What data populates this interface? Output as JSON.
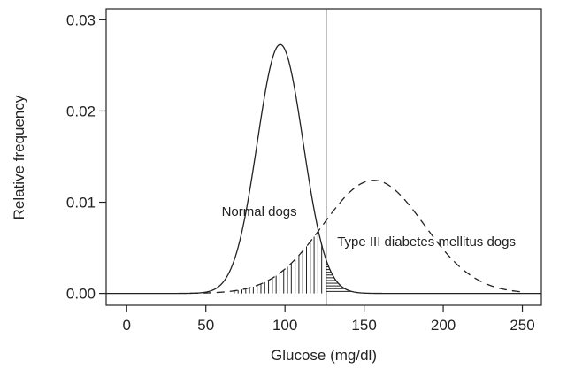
{
  "chart_data": {
    "type": "line",
    "title": "",
    "xlabel": "Glucose (mg/dl)",
    "ylabel": "Relative frequency",
    "xlim": [
      -13,
      262
    ],
    "ylim": [
      -0.0013,
      0.0312
    ],
    "x_ticks": [
      0,
      50,
      100,
      150,
      200,
      250
    ],
    "x_tick_labels": [
      "0",
      "50",
      "100",
      "150",
      "200",
      "250"
    ],
    "y_ticks": [
      0.0,
      0.01,
      0.02,
      0.03
    ],
    "y_tick_labels": [
      "0.00",
      "0.01",
      "0.02",
      "0.03"
    ],
    "grid": false,
    "series": [
      {
        "style": "solid",
        "distribution": "normal",
        "mean": 97,
        "sd": 14.5,
        "peak": 0.0273,
        "x": [
          -13,
          40,
          50,
          60,
          70,
          80,
          90,
          97,
          105,
          110,
          120,
          126,
          130,
          140,
          150,
          262
        ],
        "y": [
          0.0,
          0.0001,
          0.0005,
          0.0026,
          0.0083,
          0.0174,
          0.0242,
          0.0273,
          0.0234,
          0.0184,
          0.0097,
          0.006,
          0.0038,
          0.0011,
          0.0001,
          0.0
        ]
      },
      {
        "style": "dashed",
        "distribution": "normal",
        "mean": 156,
        "sd": 32,
        "peak": 0.0124,
        "x": [
          40,
          60,
          80,
          100,
          120,
          126,
          140,
          156,
          170,
          200,
          230,
          250
        ],
        "y": [
          0.0002,
          0.0013,
          0.0037,
          0.0068,
          0.0098,
          0.0107,
          0.012,
          0.0124,
          0.0118,
          0.0073,
          0.0032,
          0.0013
        ]
      }
    ],
    "cutoff": 126,
    "annotations": [
      {
        "text": "Normal dogs",
        "x": 60,
        "y": 0.0085
      },
      {
        "text": "Type III diabetes mellitus dogs",
        "x": 133,
        "y": 0.0052
      }
    ]
  },
  "colors": {
    "line": "#222222",
    "background": "#ffffff"
  }
}
